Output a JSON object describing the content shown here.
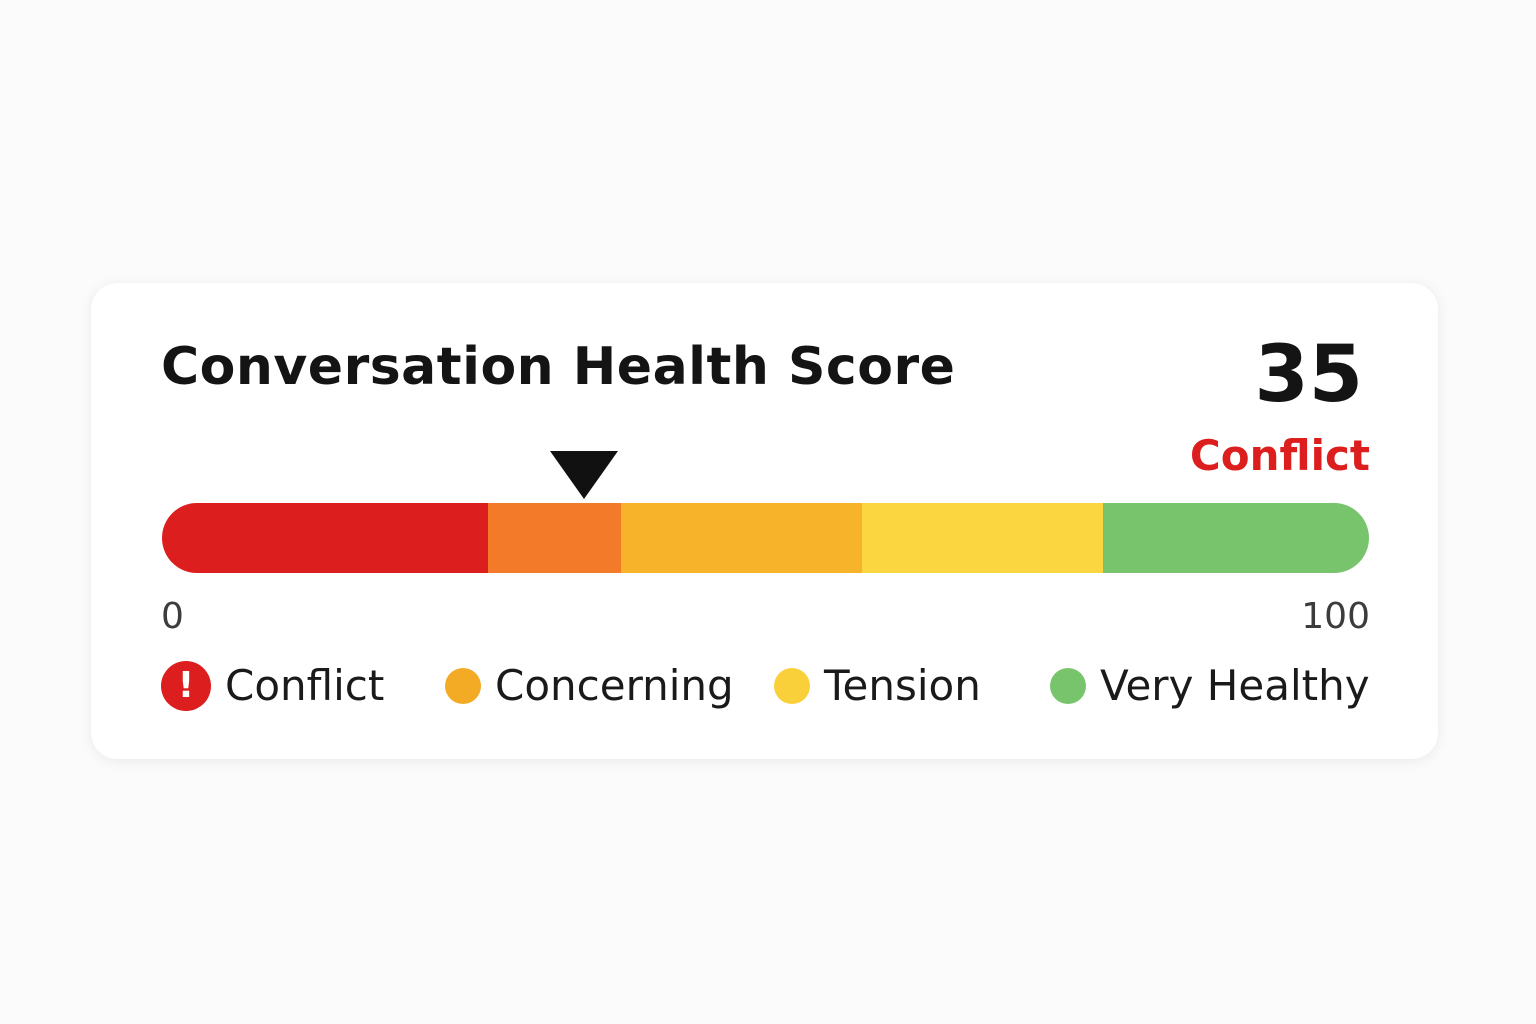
{
  "widget": {
    "title": "Conversation Health Score",
    "score": 35,
    "score_display": "35",
    "status": "Conflict",
    "status_color": "#dc1e1e"
  },
  "scale": {
    "min": 0,
    "max": 100,
    "min_label": "0",
    "max_label": "100",
    "segments": [
      {
        "from": 0,
        "to": 27,
        "color": "#dc1e1e"
      },
      {
        "from": 27,
        "to": 38,
        "color": "#f27a28"
      },
      {
        "from": 38,
        "to": 58,
        "color": "#f7b32a"
      },
      {
        "from": 58,
        "to": 78,
        "color": "#fbd640"
      },
      {
        "from": 78,
        "to": 100,
        "color": "#78c46c"
      }
    ]
  },
  "legend": [
    {
      "label": "Conflict",
      "icon": "exclamation-icon",
      "icon_glyph": "!",
      "color": "#dc1e1e"
    },
    {
      "label": "Concerning",
      "icon": "dot-icon",
      "color": "#f3aa24"
    },
    {
      "label": "Tension",
      "icon": "dot-icon",
      "color": "#f9cf3a"
    },
    {
      "label": "Very Healthy",
      "icon": "dot-icon",
      "color": "#78c46c"
    }
  ]
}
